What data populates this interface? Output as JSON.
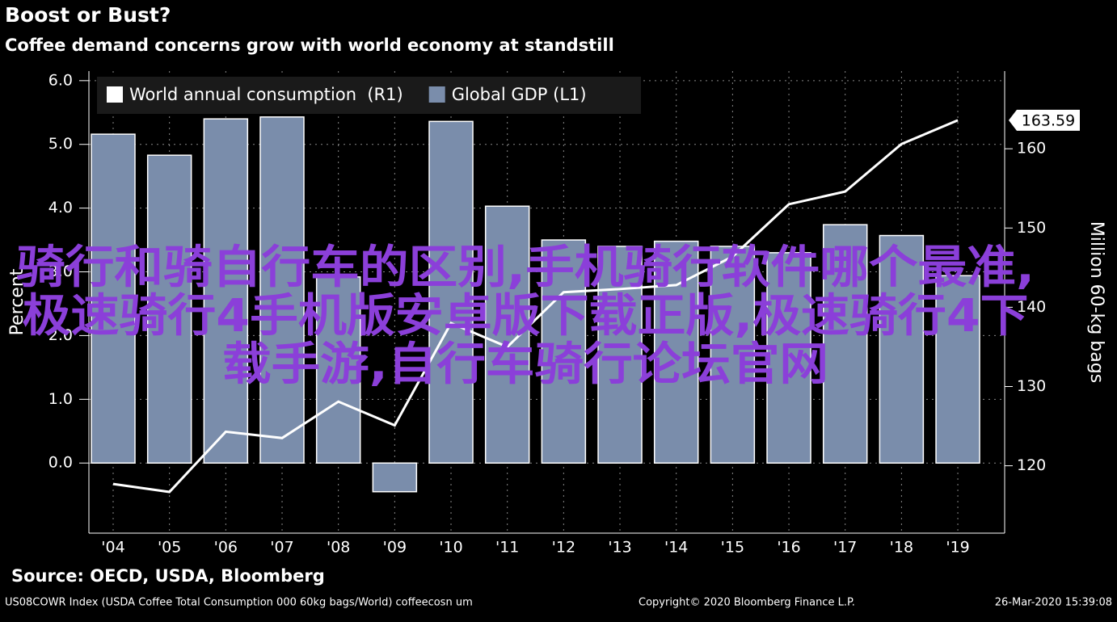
{
  "chart_data": {
    "type": "bar",
    "title": "Boost or Bust?",
    "subtitle": "Coffee demand concerns grow with world economy at standstill",
    "y_label": "Percent",
    "y2_label": "Million 60-kg bags",
    "categories": [
      "'04",
      "'05",
      "'06",
      "'07",
      "'08",
      "'09",
      "'10",
      "'11",
      "'12",
      "'13",
      "'14",
      "'15",
      "'16",
      "'17",
      "'18",
      "'19"
    ],
    "series": [
      {
        "name": "World annual consumption  (R1)",
        "type": "line",
        "axis": "y2",
        "color": "#ffffff",
        "values": [
          117.7,
          116.7,
          124.3,
          123.5,
          128.1,
          125.1,
          138.0,
          135.0,
          141.9,
          142.3,
          142.8,
          146.4,
          153.0,
          154.6,
          160.6,
          163.59
        ]
      },
      {
        "name": "Global GDP (L1)",
        "type": "bar",
        "axis": "y",
        "color": "#7a8dab",
        "values": [
          5.16,
          4.83,
          5.4,
          5.43,
          2.92,
          -0.45,
          5.36,
          4.03,
          3.5,
          3.4,
          3.48,
          3.4,
          3.3,
          3.74,
          3.57,
          2.94
        ]
      }
    ],
    "ylim": [
      -1.1,
      6.15
    ],
    "yticks": [
      {
        "value": 0,
        "label": "0.0"
      },
      {
        "value": 1,
        "label": "1.0"
      },
      {
        "value": 2,
        "label": "2.0"
      },
      {
        "value": 3,
        "label": "3.0"
      },
      {
        "value": 4,
        "label": "4.0"
      },
      {
        "value": 5,
        "label": "5.0"
      },
      {
        "value": 6,
        "label": "6.0"
      }
    ],
    "y2lim": [
      111.5,
      169.8
    ],
    "y2ticks": [
      120,
      130,
      140,
      150,
      160
    ],
    "grid": true,
    "legend": "top-left",
    "source": "Source: OECD, USDA, Bloomberg",
    "footer_left": "US08COWR Index (USDA Coffee Total Consumption 000 60kg bags/World) coffeecosn um",
    "footer_center": "Copyright© 2020 Bloomberg Finance L.P.",
    "footer_right": "26-Mar-2020 15:39:08",
    "watermark": [
      "骑行和骑自行车的区别,手机骑行软件哪个最准,",
      "极速骑行4手机版安卓版下载正版,极速骑行4下",
      "载手游,自行车骑行论坛官网"
    ]
  }
}
